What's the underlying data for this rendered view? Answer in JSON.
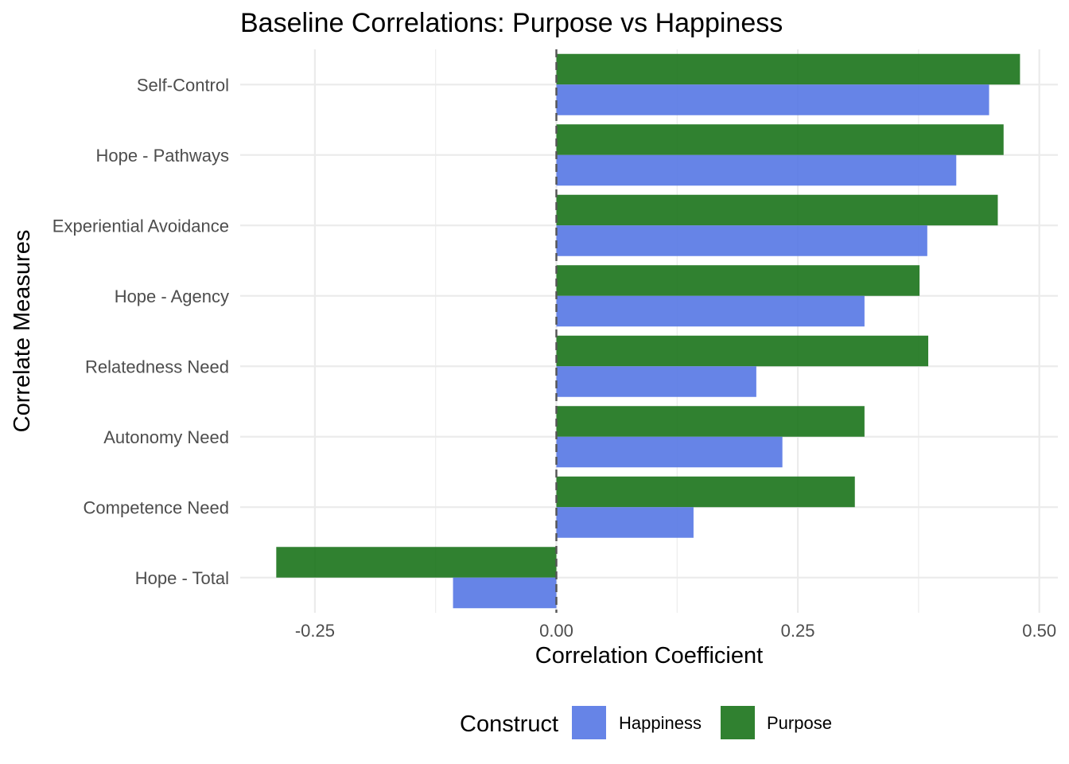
{
  "chart_data": {
    "type": "bar",
    "orientation": "horizontal",
    "title": "Baseline Correlations: Purpose vs Happiness",
    "xlabel": "Correlation Coefficient",
    "ylabel": "Correlate Measures",
    "xlim": [
      -0.33,
      0.52
    ],
    "xticks": [
      -0.25,
      0.0,
      0.25,
      0.5
    ],
    "xtick_labels": [
      "-0.25",
      "0.00",
      "0.25",
      "0.50"
    ],
    "categories": [
      "Self-Control",
      "Hope - Pathways",
      "Experiential Avoidance",
      "Hope - Agency",
      "Relatedness Need",
      "Autonomy Need",
      "Competence Need",
      "Hope - Total"
    ],
    "series": [
      {
        "name": "Purpose",
        "color": "#1a7319",
        "values": [
          0.48,
          0.463,
          0.457,
          0.376,
          0.385,
          0.319,
          0.309,
          -0.29
        ]
      },
      {
        "name": "Happiness",
        "color": "#5577e4",
        "values": [
          0.448,
          0.414,
          0.384,
          0.319,
          0.207,
          0.234,
          0.142,
          -0.107
        ]
      }
    ],
    "reference_line": {
      "x": 0,
      "style": "dashed"
    },
    "grid": true,
    "legend": {
      "title": "Construct",
      "position": "bottom",
      "entries": [
        "Happiness",
        "Purpose"
      ]
    }
  }
}
